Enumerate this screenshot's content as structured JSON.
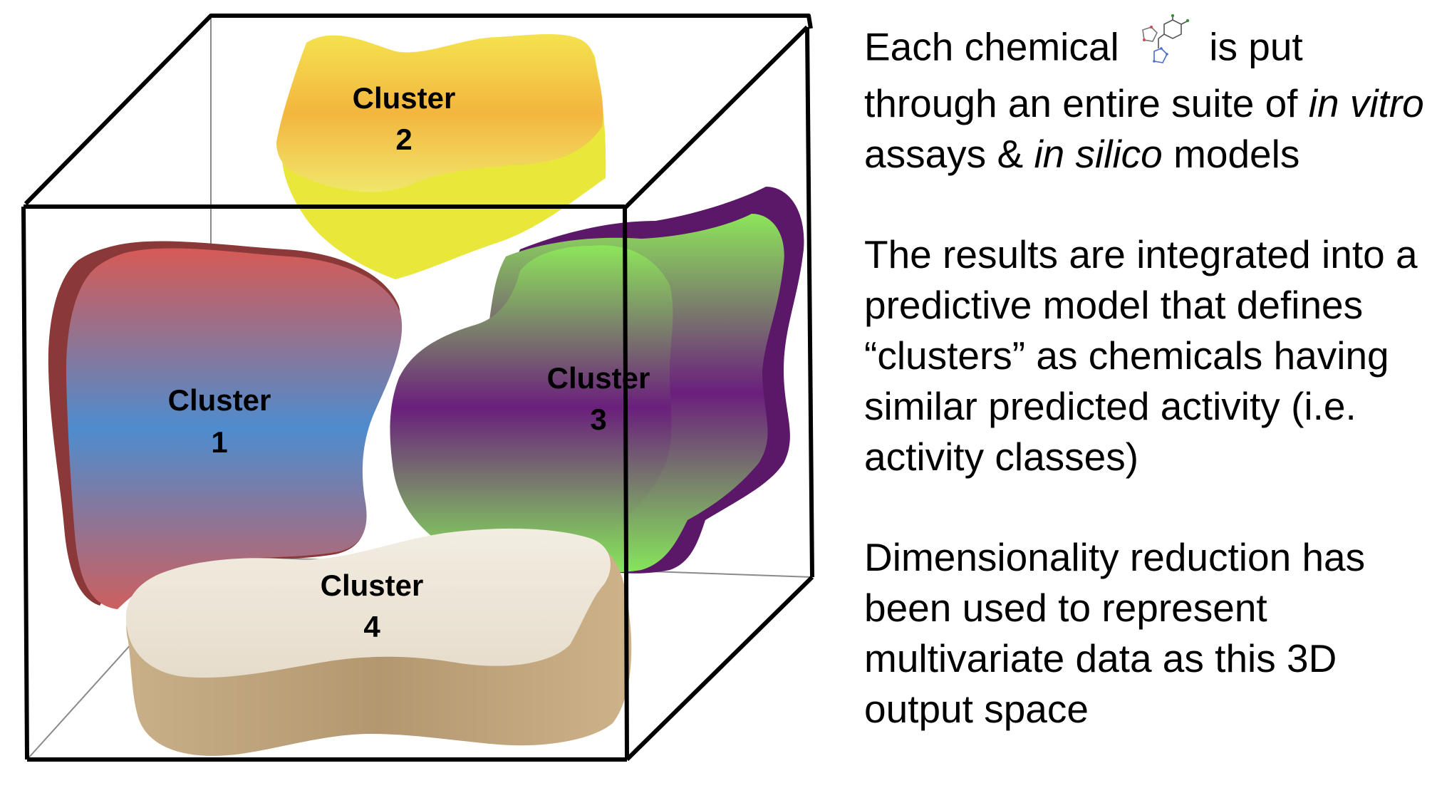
{
  "diagram": {
    "clusters": [
      {
        "id": "1",
        "label_word": "Cluster",
        "label_num": "1",
        "colors": [
          "#d65a55",
          "#4e8cce",
          "#cc5f5f"
        ],
        "side": "#8a3838"
      },
      {
        "id": "2",
        "label_word": "Cluster",
        "label_num": "2",
        "colors": [
          "#f4e24f",
          "#f3b63f",
          "#f0e66a"
        ],
        "side": "#e8e73a"
      },
      {
        "id": "3",
        "label_word": "Cluster",
        "label_num": "3",
        "colors": [
          "#8de55a",
          "#6a1f7c",
          "#86e55a"
        ],
        "side": "#5b1768"
      },
      {
        "id": "4",
        "label_word": "Cluster",
        "label_num": "4",
        "colors": [
          "#f2ede2",
          "#e6dccb"
        ],
        "side": "#bea37c"
      }
    ]
  },
  "text": {
    "p1": {
      "part1": "Each chemical",
      "part2": "is put through an entire suite of",
      "italic1": "in vitro",
      "part3": "assays &",
      "italic2": "in silico",
      "part4": "models"
    },
    "p2": "The results are integrated into a predictive model that defines “clusters” as chemicals having similar predicted activity (i.e. activity classes)",
    "p3": "Dimensionality reduction has been used to represent multivariate data as this 3D output space"
  },
  "icon": {
    "name": "chemical-structure-icon"
  }
}
